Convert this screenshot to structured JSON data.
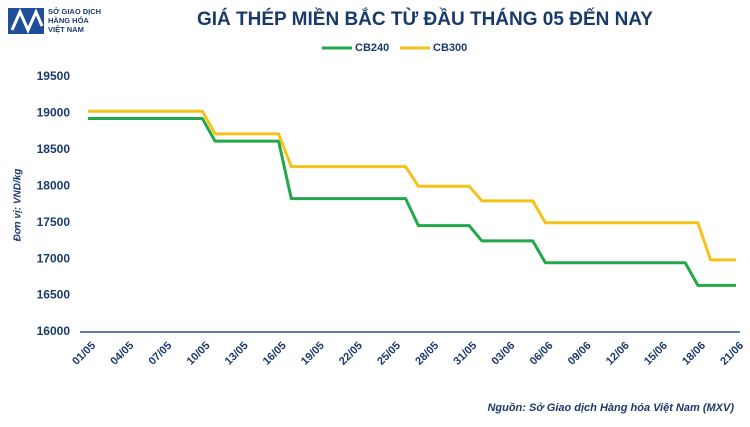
{
  "logo": {
    "lines": [
      "SỞ GIAO DỊCH",
      "HÀNG HÓA",
      "VIỆT NAM"
    ]
  },
  "chart_data": {
    "type": "line",
    "title": "GIÁ THÉP MIỀN BẮC TỪ ĐẦU THÁNG 05 ĐẾN NAY",
    "ylabel": "Đơn vị: VND/kg",
    "source": "Nguồn: Sở Giao dịch Hàng hóa Việt Nam (MXV)",
    "categories": [
      "01/05",
      null,
      null,
      "04/05",
      null,
      null,
      "07/05",
      null,
      null,
      "10/05",
      null,
      null,
      "13/05",
      null,
      null,
      "16/05",
      null,
      null,
      "19/05",
      null,
      null,
      "22/05",
      null,
      null,
      "25/05",
      null,
      null,
      "28/05",
      null,
      null,
      "31/05",
      null,
      null,
      "03/06",
      null,
      null,
      "06/06",
      null,
      null,
      "09/06",
      null,
      null,
      "12/06",
      null,
      null,
      "15/06",
      null,
      null,
      "18/06",
      null,
      null,
      "21/06"
    ],
    "series": [
      {
        "name": "CB240",
        "color": "#22a84a",
        "values": [
          18930,
          18930,
          18930,
          18930,
          18930,
          18930,
          18930,
          18930,
          18930,
          18930,
          18620,
          18620,
          18620,
          18620,
          18620,
          18620,
          17830,
          17830,
          17830,
          17830,
          17830,
          17830,
          17830,
          17830,
          17830,
          17830,
          17460,
          17460,
          17460,
          17460,
          17460,
          17250,
          17250,
          17250,
          17250,
          17250,
          16950,
          16950,
          16950,
          16950,
          16950,
          16950,
          16950,
          16950,
          16950,
          16950,
          16950,
          16950,
          16640,
          16640,
          16640,
          16640
        ]
      },
      {
        "name": "CB300",
        "color": "#f5c21b",
        "values": [
          19030,
          19030,
          19030,
          19030,
          19030,
          19030,
          19030,
          19030,
          19030,
          19030,
          18720,
          18720,
          18720,
          18720,
          18720,
          18720,
          18270,
          18270,
          18270,
          18270,
          18270,
          18270,
          18270,
          18270,
          18270,
          18270,
          18000,
          18000,
          18000,
          18000,
          18000,
          17800,
          17800,
          17800,
          17800,
          17800,
          17500,
          17500,
          17500,
          17500,
          17500,
          17500,
          17500,
          17500,
          17500,
          17500,
          17500,
          17500,
          17500,
          16990,
          16990,
          16990
        ]
      }
    ],
    "ylim": [
      16000,
      19500
    ],
    "yticks": [
      16000,
      16500,
      17000,
      17500,
      18000,
      18500,
      19000,
      19500
    ],
    "legend": "top"
  }
}
